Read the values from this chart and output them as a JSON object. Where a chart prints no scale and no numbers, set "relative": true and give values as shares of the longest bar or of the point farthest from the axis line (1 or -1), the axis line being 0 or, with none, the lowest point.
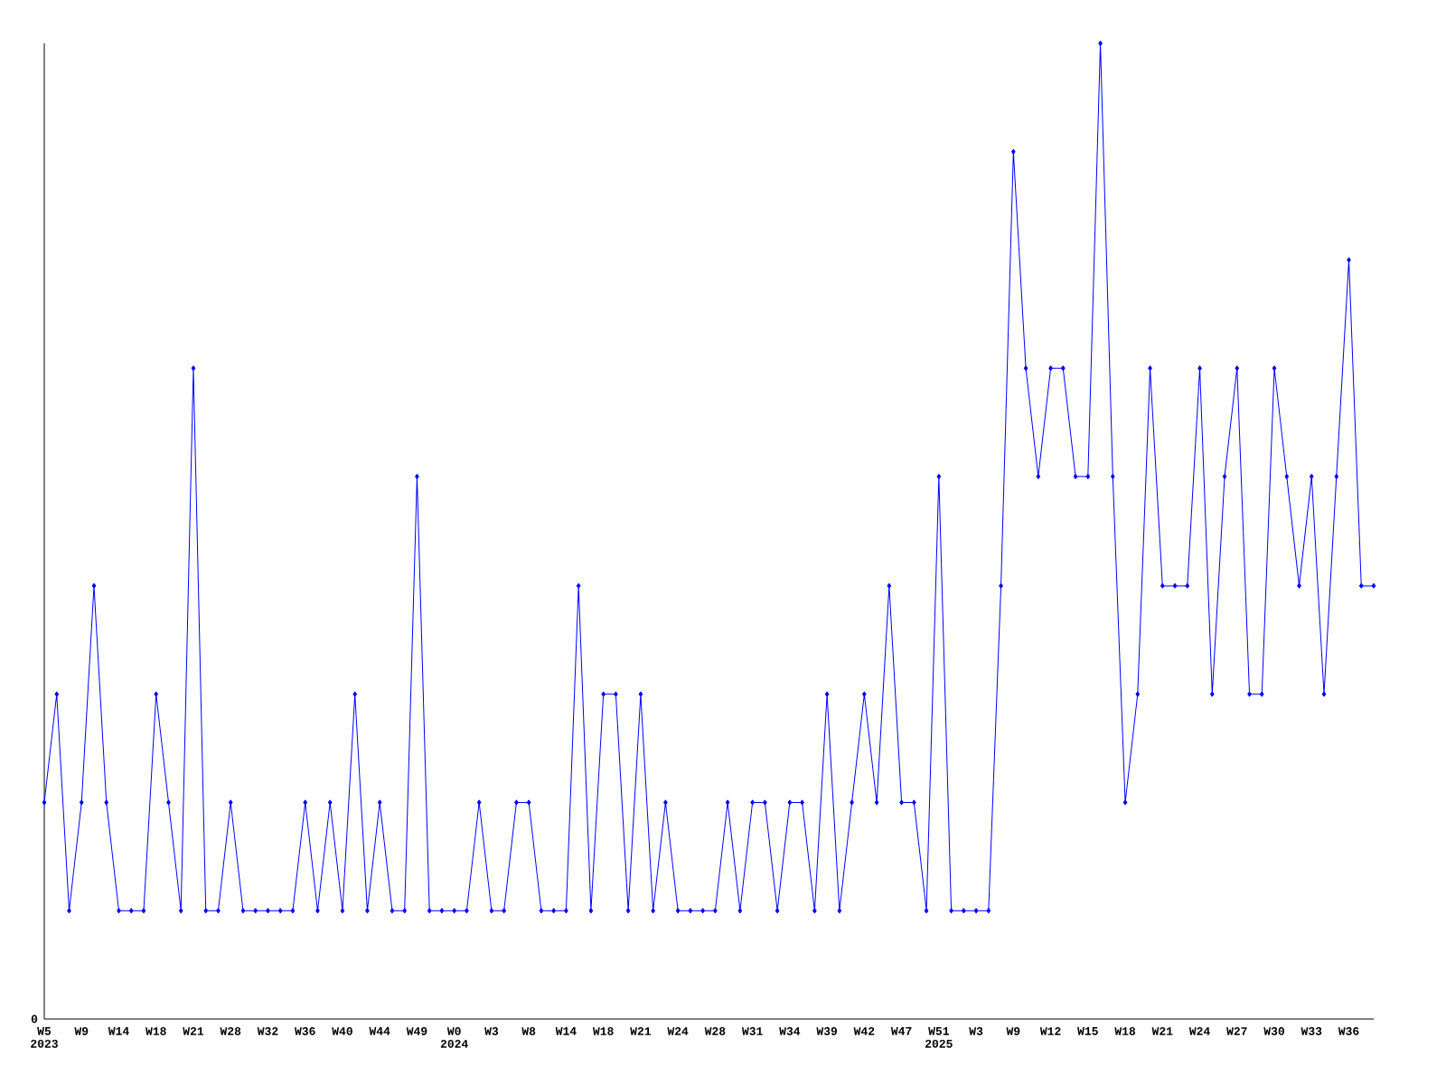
{
  "chart_data": {
    "type": "line",
    "relative": true,
    "color": "#0000ff",
    "marker": "diamond",
    "categories": [
      "W5 2023",
      null,
      null,
      "W9",
      null,
      null,
      "W14",
      null,
      null,
      "W18",
      null,
      null,
      "W21",
      null,
      null,
      "W28",
      null,
      null,
      "W32",
      null,
      null,
      "W36",
      null,
      null,
      "W40",
      null,
      null,
      "W44",
      null,
      null,
      "W49",
      null,
      null,
      "W0 2024",
      null,
      null,
      "W3",
      null,
      null,
      "W8",
      null,
      null,
      "W14",
      null,
      null,
      "W18",
      null,
      null,
      "W21",
      null,
      null,
      "W24",
      null,
      null,
      "W28",
      null,
      null,
      "W31",
      null,
      null,
      "W34",
      null,
      null,
      "W39",
      null,
      null,
      "W42",
      null,
      null,
      "W47",
      null,
      null,
      "W51 2025",
      null,
      null,
      "W3",
      null,
      null,
      "W9",
      null,
      null,
      "W12",
      null,
      null,
      "W15",
      null,
      null,
      "W18",
      null,
      null,
      "W21",
      null,
      null,
      "W24",
      null,
      null,
      "W27",
      null,
      null,
      "W30",
      null,
      null,
      "W33",
      null,
      null,
      "W36",
      null,
      null
    ],
    "values": [
      0.222,
      0.333,
      0.111,
      0.222,
      0.444,
      0.222,
      0.111,
      0.111,
      0.111,
      0.333,
      0.222,
      0.111,
      0.667,
      0.111,
      0.111,
      0.222,
      0.111,
      0.111,
      0.111,
      0.111,
      0.111,
      0.222,
      0.111,
      0.222,
      0.111,
      0.333,
      0.111,
      0.222,
      0.111,
      0.111,
      0.556,
      0.111,
      0.111,
      0.111,
      0.111,
      0.222,
      0.111,
      0.111,
      0.222,
      0.222,
      0.111,
      0.111,
      0.111,
      0.444,
      0.111,
      0.333,
      0.333,
      0.111,
      0.333,
      0.111,
      0.222,
      0.111,
      0.111,
      0.111,
      0.111,
      0.222,
      0.111,
      0.222,
      0.222,
      0.111,
      0.222,
      0.222,
      0.111,
      0.333,
      0.111,
      0.222,
      0.333,
      0.222,
      0.444,
      0.222,
      0.222,
      0.111,
      0.556,
      0.111,
      0.111,
      0.111,
      0.111,
      0.444,
      0.889,
      0.667,
      0.556,
      0.667,
      0.667,
      0.556,
      0.556,
      1,
      0.556,
      0.222,
      0.333,
      0.667,
      0.444,
      0.444,
      0.444,
      0.667,
      0.333,
      0.556,
      0.667,
      0.333,
      0.333,
      0.667,
      0.556,
      0.444,
      0.556,
      0.333,
      0.556,
      0.778,
      0.444,
      0.444
    ],
    "annotations": [
      "0"
    ]
  }
}
